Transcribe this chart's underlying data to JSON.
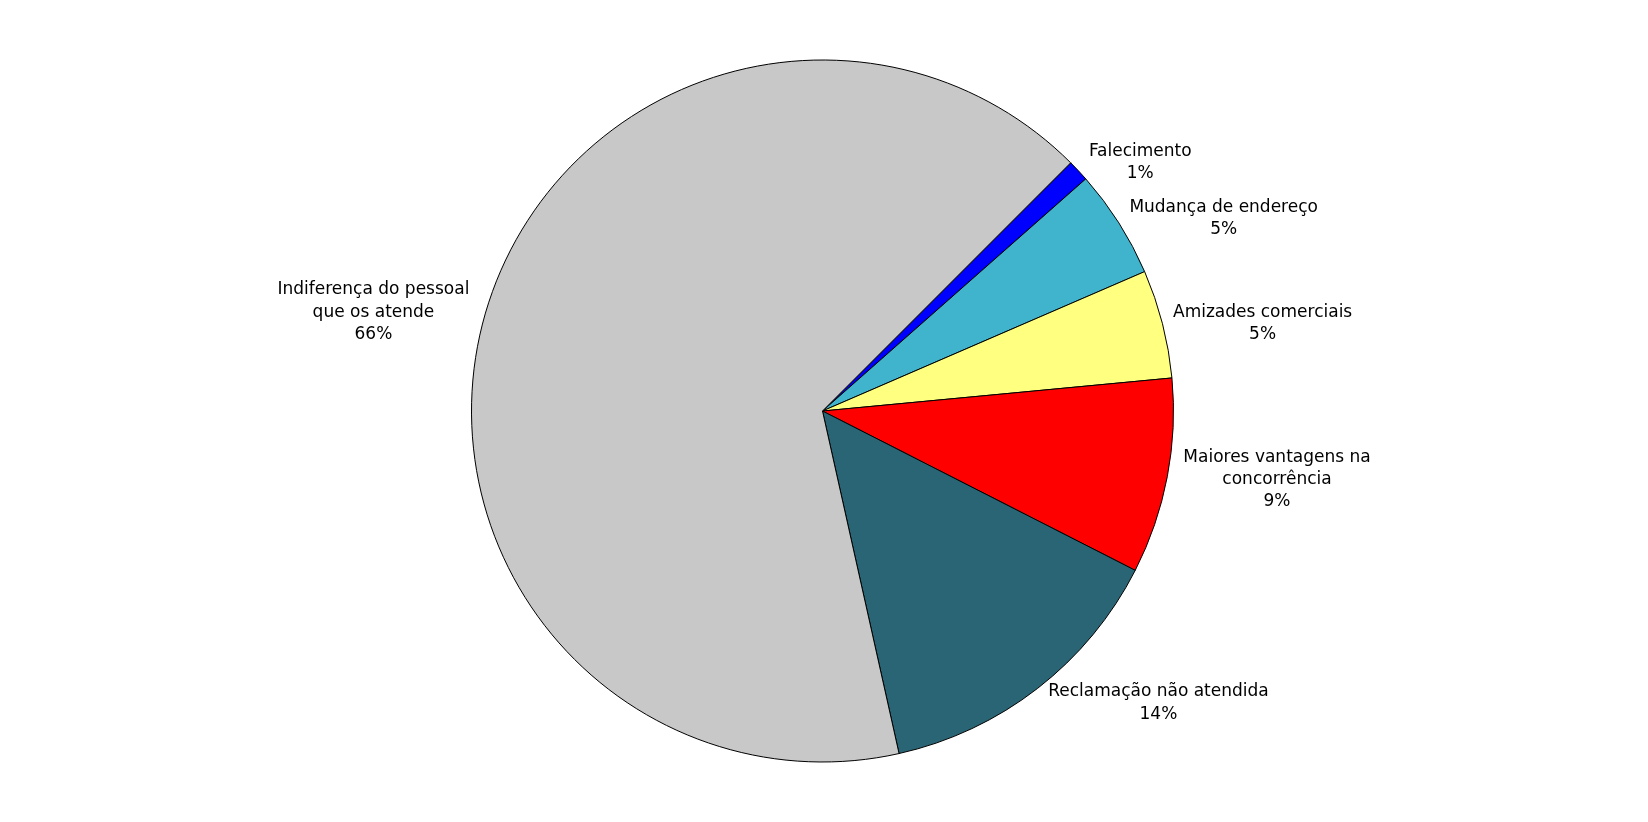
{
  "chart_data": {
    "type": "pie",
    "categories": [
      "Falecimento",
      "Mudança de endereço",
      "Amizades comerciais",
      "Maiores vantagens na concorrência",
      "Reclamação não atendida",
      "Indiferença do pessoal que os atende"
    ],
    "values": [
      1,
      5,
      5,
      9,
      14,
      66
    ],
    "value_labels": [
      "1%",
      "5%",
      "5%",
      "9%",
      "14%",
      "66%"
    ],
    "colors": [
      "#0000ff",
      "#40b4cc",
      "#ffff80",
      "#ff0000",
      "#2a6575",
      "#c8c8c8"
    ],
    "legend": false
  }
}
